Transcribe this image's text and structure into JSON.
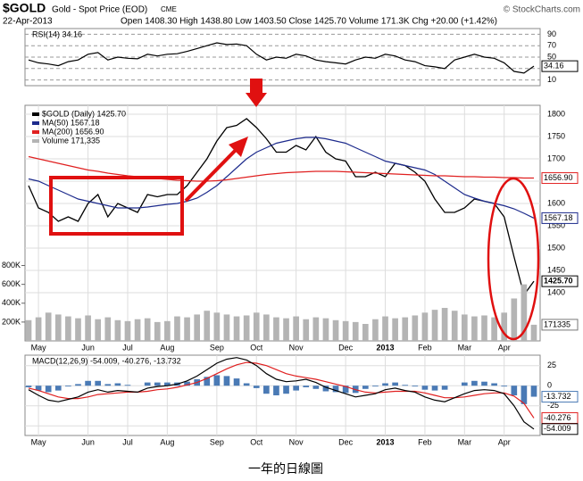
{
  "header": {
    "symbol": "$GOLD",
    "name": "Gold - Spot Price (EOD)",
    "exchange": "CME",
    "date": "22-Apr-2013",
    "quote": "Open 1408.30 High 1438.80 Low 1403.50 Close 1425.70 Volume 171.3K Chg +20.00 (+1.42%)",
    "source": "© StockCharts.com"
  },
  "chart_data": [
    {
      "type": "line",
      "title": "RSI(14) 34.16",
      "ylim": [
        0,
        100
      ],
      "yticks": [
        90,
        70,
        50,
        30,
        10
      ],
      "grid": true,
      "series": [
        {
          "color": "#000000",
          "values": [
            45,
            40,
            38,
            35,
            42,
            45,
            55,
            58,
            45,
            50,
            48,
            47,
            55,
            52,
            55,
            56,
            60,
            65,
            70,
            75,
            72,
            73,
            70,
            55,
            45,
            50,
            48,
            55,
            52,
            45,
            42,
            40,
            38,
            45,
            50,
            48,
            55,
            52,
            45,
            42,
            35,
            33,
            30,
            45,
            50,
            55,
            50,
            48,
            40,
            25,
            22,
            34.16
          ]
        }
      ]
    },
    {
      "type": "line",
      "categories": [
        null,
        "May",
        null,
        null,
        null,
        null,
        "Jun",
        null,
        null,
        null,
        "Jul",
        null,
        null,
        null,
        "Aug",
        null,
        null,
        null,
        null,
        "Sep",
        null,
        null,
        null,
        "Oct",
        null,
        null,
        null,
        "Nov",
        null,
        null,
        null,
        null,
        "Dec",
        null,
        null,
        null,
        "2013",
        null,
        null,
        null,
        "Feb",
        null,
        null,
        null,
        "Mar",
        null,
        null,
        null,
        "Apr",
        null,
        null,
        null
      ],
      "ylim": [
        1292,
        1820
      ],
      "yticks": [
        1400,
        1450,
        1500,
        1550,
        1600,
        1650,
        1700,
        1750,
        1800
      ],
      "y2lim": [
        0,
        2500000
      ],
      "y2ticks": [
        {
          "value": 200000,
          "label": "200K"
        },
        {
          "value": 400000,
          "label": "400K"
        },
        {
          "value": 600000,
          "label": "600K"
        },
        {
          "value": 800000,
          "label": "800K"
        }
      ],
      "grid": true,
      "series": [
        {
          "name": "$GOLD (Daily) 1425.70",
          "color": "#000000",
          "values": [
            1640,
            1590,
            1580,
            1560,
            1570,
            1560,
            1600,
            1620,
            1570,
            1600,
            1590,
            1580,
            1620,
            1615,
            1620,
            1620,
            1640,
            1670,
            1700,
            1740,
            1770,
            1775,
            1790,
            1770,
            1745,
            1715,
            1715,
            1730,
            1720,
            1750,
            1715,
            1700,
            1695,
            1660,
            1660,
            1670,
            1660,
            1690,
            1685,
            1670,
            1650,
            1610,
            1580,
            1580,
            1590,
            1610,
            1605,
            1600,
            1570,
            1480,
            1395,
            1425.7
          ],
          "value_labels": [
            null,
            null,
            null,
            null,
            null,
            null,
            null,
            null,
            null,
            null,
            null,
            null,
            null,
            null,
            null,
            null,
            null,
            null,
            null,
            null,
            null,
            null,
            null,
            null,
            null,
            null,
            null,
            null,
            null,
            null,
            null,
            null,
            null,
            null,
            null,
            null,
            null,
            null,
            null,
            null,
            null,
            null,
            null,
            null,
            null,
            null,
            null,
            null,
            null,
            null,
            null,
            "1425.70"
          ]
        },
        {
          "name": "MA(50) 1567.18",
          "color": "#1c2a8c",
          "values": [
            1655,
            1650,
            1640,
            1630,
            1620,
            1610,
            1605,
            1600,
            1595,
            1590,
            1590,
            1590,
            1592,
            1595,
            1598,
            1600,
            1605,
            1612,
            1625,
            1640,
            1660,
            1680,
            1700,
            1715,
            1725,
            1735,
            1740,
            1745,
            1748,
            1748,
            1745,
            1740,
            1735,
            1725,
            1715,
            1705,
            1695,
            1690,
            1685,
            1680,
            1675,
            1665,
            1650,
            1635,
            1620,
            1612,
            1605,
            1600,
            1595,
            1588,
            1578,
            1567.18
          ]
        },
        {
          "name": "MA(200) 1656.90",
          "color": "#e02020",
          "values": [
            1705,
            1700,
            1695,
            1690,
            1685,
            1680,
            1675,
            1672,
            1668,
            1665,
            1662,
            1660,
            1658,
            1656,
            1654,
            1652,
            1651,
            1650,
            1650,
            1651,
            1653,
            1656,
            1659,
            1662,
            1665,
            1667,
            1669,
            1670,
            1671,
            1672,
            1672,
            1672,
            1671,
            1670,
            1669,
            1668,
            1667,
            1666,
            1665,
            1664,
            1663,
            1662,
            1662,
            1661,
            1660,
            1660,
            1659,
            1659,
            1658,
            1658,
            1657,
            1656.9
          ],
          "value_labels": [
            null,
            null,
            null,
            null,
            null,
            null,
            null,
            null,
            null,
            null,
            null,
            null,
            null,
            null,
            null,
            null,
            null,
            null,
            null,
            null,
            null,
            null,
            null,
            null,
            null,
            null,
            null,
            null,
            null,
            null,
            null,
            null,
            null,
            null,
            null,
            null,
            null,
            null,
            null,
            null,
            null,
            null,
            null,
            null,
            null,
            null,
            null,
            null,
            null,
            null,
            null,
            "1656.90"
          ]
        },
        {
          "name": "Volume 171,335",
          "color": "#b4b4b4",
          "type": "bar",
          "axis": "y2",
          "values": [
            220000,
            250000,
            300000,
            280000,
            260000,
            240000,
            270000,
            230000,
            250000,
            220000,
            210000,
            230000,
            240000,
            200000,
            210000,
            260000,
            250000,
            280000,
            320000,
            300000,
            280000,
            260000,
            270000,
            300000,
            280000,
            250000,
            240000,
            260000,
            230000,
            250000,
            240000,
            220000,
            210000,
            200000,
            180000,
            230000,
            260000,
            240000,
            250000,
            270000,
            300000,
            330000,
            350000,
            320000,
            280000,
            260000,
            270000,
            250000,
            300000,
            450000,
            600000,
            171335
          ]
        }
      ]
    },
    {
      "type": "line",
      "title": "MACD(12,26,9) -54.009, -40.276, -13.732",
      "categories": [
        null,
        "May",
        null,
        null,
        null,
        null,
        "Jun",
        null,
        null,
        null,
        "Jul",
        null,
        null,
        null,
        "Aug",
        null,
        null,
        null,
        null,
        "Sep",
        null,
        null,
        null,
        "Oct",
        null,
        null,
        null,
        "Nov",
        null,
        null,
        null,
        null,
        "Dec",
        null,
        null,
        null,
        "2013",
        null,
        null,
        null,
        "Feb",
        null,
        null,
        null,
        "Mar",
        null,
        null,
        null,
        "Apr",
        null,
        null,
        null
      ],
      "ylim": [
        -62,
        38
      ],
      "yticks": [
        25,
        0,
        -25,
        -50
      ],
      "grid": true,
      "series": [
        {
          "color": "#4a7ab5",
          "type": "bar",
          "values": [
            -2,
            -6,
            -8,
            -6,
            -1,
            2,
            6,
            6,
            2,
            3,
            1,
            0,
            4,
            4,
            4,
            4,
            5,
            8,
            11,
            13,
            12,
            9,
            3,
            -3,
            -10,
            -12,
            -10,
            -6,
            -2,
            -4,
            -7,
            -8,
            -9,
            -9,
            -4,
            -1,
            3,
            4,
            1,
            -1,
            -5,
            -6,
            -5,
            0,
            4,
            6,
            5,
            3,
            -1,
            -12,
            -23,
            -13.732
          ]
        },
        {
          "color": "#e02020",
          "values": [
            -3,
            -6,
            -10,
            -14,
            -16,
            -16,
            -14,
            -11,
            -10,
            -9,
            -8,
            -8,
            -7,
            -5,
            -4,
            -2,
            1,
            4,
            9,
            15,
            21,
            26,
            29,
            28,
            25,
            20,
            15,
            12,
            10,
            8,
            5,
            2,
            -1,
            -5,
            -8,
            -9,
            -8,
            -7,
            -7,
            -7,
            -9,
            -12,
            -15,
            -15,
            -14,
            -12,
            -10,
            -9,
            -9,
            -13,
            -22,
            -40.276
          ]
        },
        {
          "color": "#000000",
          "values": [
            -5,
            -12,
            -18,
            -20,
            -17,
            -14,
            -8,
            -5,
            -8,
            -6,
            -7,
            -8,
            -3,
            -1,
            0,
            2,
            6,
            12,
            20,
            28,
            33,
            35,
            32,
            25,
            15,
            8,
            5,
            6,
            8,
            4,
            -2,
            -6,
            -10,
            -14,
            -12,
            -10,
            -5,
            -3,
            -6,
            -8,
            -14,
            -18,
            -20,
            -15,
            -10,
            -6,
            -5,
            -6,
            -10,
            -25,
            -45,
            -54.009
          ]
        }
      ]
    }
  ],
  "caption": "一年的日線圖"
}
